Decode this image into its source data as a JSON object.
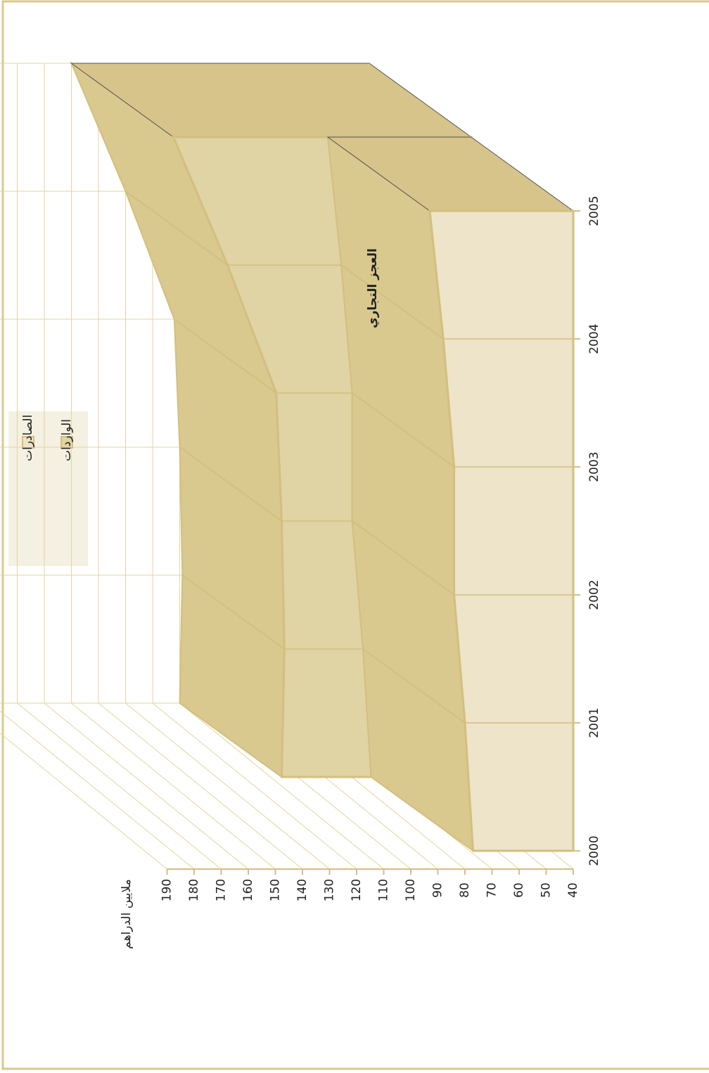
{
  "chart_data": {
    "type": "area3d",
    "y_axis_label": "ملايين الدراهم",
    "annotation": "العجز التجاري",
    "categories": [
      "2000",
      "2001",
      "2002",
      "2003",
      "2004",
      "2005"
    ],
    "series": [
      {
        "name": "الصادرات",
        "color": "#ede4c9",
        "values": [
          77,
          80,
          84,
          84,
          88,
          93
        ]
      },
      {
        "name": "الواردات",
        "color": "#e0d3a4",
        "values": [
          110,
          109,
          110,
          112,
          130,
          150
        ]
      }
    ],
    "ylim": [
      40,
      190
    ],
    "yticks": [
      40,
      50,
      60,
      70,
      80,
      90,
      100,
      110,
      120,
      130,
      140,
      150,
      160,
      170,
      180,
      190
    ],
    "grid": true
  }
}
